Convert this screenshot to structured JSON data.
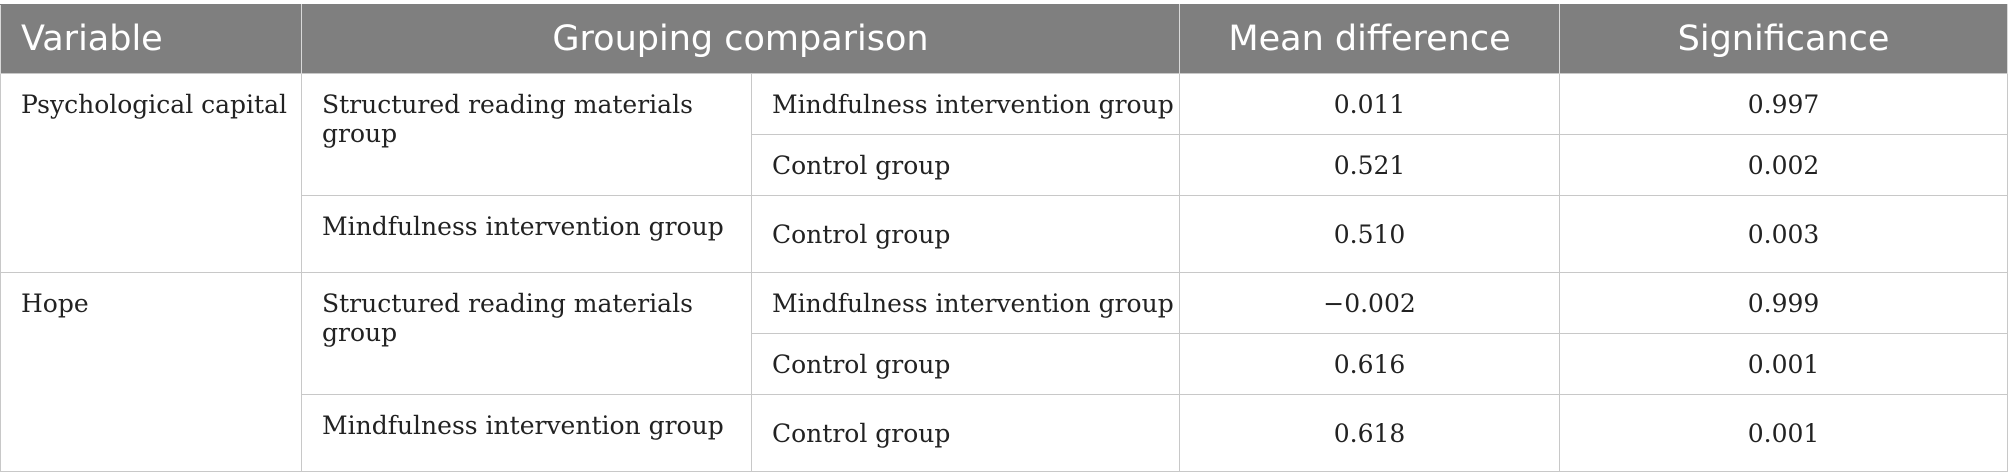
{
  "header": {
    "variable": "Variable",
    "grouping_comparison": "Grouping comparison",
    "mean_difference": "Mean difference",
    "significance": "Significance"
  },
  "rows": [
    {
      "variable": "Psychological capital",
      "group": "Structured reading materials group",
      "comparison": "Mindfulness intervention group",
      "mean_difference": "0.011",
      "significance": "0.997"
    },
    {
      "variable": "",
      "group": "",
      "comparison": "Control group",
      "mean_difference": "0.521",
      "significance": "0.002"
    },
    {
      "variable": "",
      "group": "Mindfulness intervention group",
      "comparison": "Control group",
      "mean_difference": "0.510",
      "significance": "0.003"
    },
    {
      "variable": "Hope",
      "group": "Structured reading materials group",
      "comparison": "Mindfulness intervention group",
      "mean_difference": "−0.002",
      "significance": "0.999"
    },
    {
      "variable": "",
      "group": "",
      "comparison": "Control group",
      "mean_difference": "0.616",
      "significance": "0.001"
    },
    {
      "variable": "",
      "group": "Mindfulness intervention group",
      "comparison": "Control group",
      "mean_difference": "0.618",
      "significance": "0.001"
    }
  ]
}
